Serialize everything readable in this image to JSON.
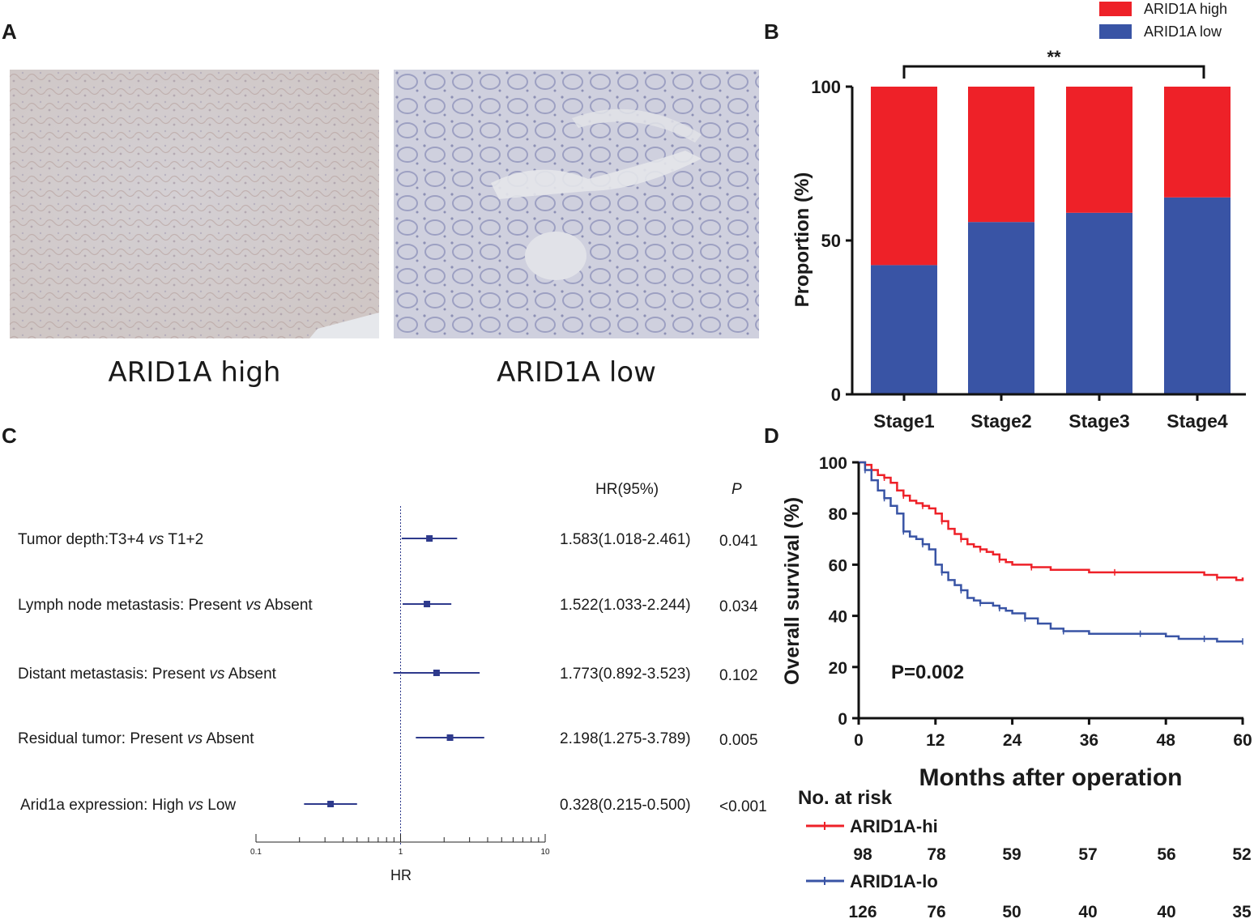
{
  "panels": {
    "a": {
      "letter": "A",
      "left_caption": "ARID1A high",
      "right_caption": "ARID1A low"
    },
    "b": {
      "letter": "B"
    },
    "c": {
      "letter": "C"
    },
    "d": {
      "letter": "D"
    }
  },
  "colors": {
    "high": "#ee2128",
    "low": "#3954a5",
    "forest": "#2e3a8c",
    "ihc_high_bg": "#d9d6d9",
    "ihc_low_bg": "#cdcfe0"
  },
  "chart_data": [
    {
      "type": "bar",
      "panel": "B",
      "stacked": true,
      "categories": [
        "Stage1",
        "Stage2",
        "Stage3",
        "Stage4"
      ],
      "series": [
        {
          "name": "ARID1A low",
          "values": [
            42,
            56,
            59,
            64
          ]
        },
        {
          "name": "ARID1A high",
          "values": [
            58,
            44,
            41,
            36
          ]
        }
      ],
      "legend": [
        "ARID1A high",
        "ARID1A low"
      ],
      "legend_position": "top-right",
      "ylabel": "Proportion (%)",
      "ylim": [
        0,
        100
      ],
      "yticks": [
        "0",
        "50",
        "100"
      ],
      "significance": {
        "label": "**",
        "from": "Stage1",
        "to": "Stage4"
      }
    },
    {
      "type": "scatter",
      "panel": "C",
      "subtype": "forest",
      "xlabel": "HR",
      "xscale": "log",
      "xlim": [
        0.1,
        10
      ],
      "xticks": [
        "0.1",
        "1",
        "10"
      ],
      "reference_line": 1,
      "col_headers": {
        "hr": "HR(95%)",
        "p": "P"
      },
      "rows": [
        {
          "label_main": "Tumor depth:T3+4 ",
          "label_vs": "vs",
          "label_rest": " T1+2",
          "hr": 1.583,
          "lo": 1.018,
          "hi": 2.461,
          "hr_text": "1.583(1.018-2.461)",
          "p": "0.041"
        },
        {
          "label_main": "Lymph node metastasis: Present ",
          "label_vs": "vs",
          "label_rest": " Absent",
          "hr": 1.522,
          "lo": 1.033,
          "hi": 2.244,
          "hr_text": "1.522(1.033-2.244)",
          "p": "0.034"
        },
        {
          "label_main": "Distant metastasis: Present ",
          "label_vs": "vs",
          "label_rest": " Absent",
          "hr": 1.773,
          "lo": 0.892,
          "hi": 3.523,
          "hr_text": "1.773(0.892-3.523)",
          "p": "0.102"
        },
        {
          "label_main": "Residual tumor: Present ",
          "label_vs": "vs",
          "label_rest": " Absent",
          "hr": 2.198,
          "lo": 1.275,
          "hi": 3.789,
          "hr_text": "2.198(1.275-3.789)",
          "p": "0.005"
        },
        {
          "label_main": "Arid1a expression: High ",
          "label_vs": "vs",
          "label_rest": " Low",
          "hr": 0.328,
          "lo": 0.215,
          "hi": 0.5,
          "hr_text": "0.328(0.215-0.500)",
          "p": "<0.001"
        }
      ]
    },
    {
      "type": "line",
      "panel": "D",
      "subtype": "kaplan-meier",
      "xlabel": "Months after operation",
      "ylabel": "Overall survival (%)",
      "xlim": [
        0,
        60
      ],
      "ylim": [
        0,
        100
      ],
      "xticks": [
        "0",
        "12",
        "24",
        "36",
        "48",
        "60"
      ],
      "yticks": [
        "0",
        "20",
        "40",
        "60",
        "80",
        "100"
      ],
      "pvalue": "P=0.002",
      "series": [
        {
          "name": "ARID1A-hi",
          "x": [
            0,
            1,
            2,
            3,
            4,
            5,
            6,
            7,
            8,
            9,
            10,
            11,
            12,
            13,
            14,
            15,
            16,
            17,
            18,
            19,
            20,
            21,
            22,
            23,
            24,
            27,
            30,
            36,
            40,
            48,
            54,
            56,
            59,
            60
          ],
          "y": [
            100,
            99,
            97,
            95,
            94,
            92,
            89,
            87,
            85,
            84,
            83,
            82,
            80,
            77,
            74,
            72,
            70,
            68,
            67,
            66,
            65,
            64,
            62,
            61,
            60,
            59,
            58,
            57,
            57,
            57,
            56,
            55,
            54,
            55
          ]
        },
        {
          "name": "ARID1A-lo",
          "x": [
            0,
            1,
            2,
            3,
            4,
            5,
            6,
            7,
            8,
            9,
            10,
            11,
            12,
            13,
            14,
            15,
            16,
            17,
            18,
            19,
            20,
            21,
            22,
            23,
            24,
            26,
            28,
            30,
            32,
            36,
            40,
            44,
            48,
            50,
            54,
            56,
            58,
            60
          ],
          "y": [
            100,
            97,
            93,
            89,
            86,
            83,
            80,
            73,
            71,
            70,
            68,
            66,
            60,
            57,
            54,
            52,
            50,
            47,
            46,
            45,
            45,
            44,
            43,
            42,
            41,
            39,
            37,
            35,
            34,
            33,
            33,
            33,
            32,
            31,
            31,
            30,
            30,
            30
          ]
        }
      ],
      "risk_table": {
        "title": "No. at risk",
        "rows": [
          {
            "name": "ARID1A-hi",
            "values": [
              "98",
              "78",
              "59",
              "57",
              "56",
              "52"
            ]
          },
          {
            "name": "ARID1A-lo",
            "values": [
              "126",
              "76",
              "50",
              "40",
              "40",
              "35"
            ]
          }
        ]
      }
    }
  ]
}
